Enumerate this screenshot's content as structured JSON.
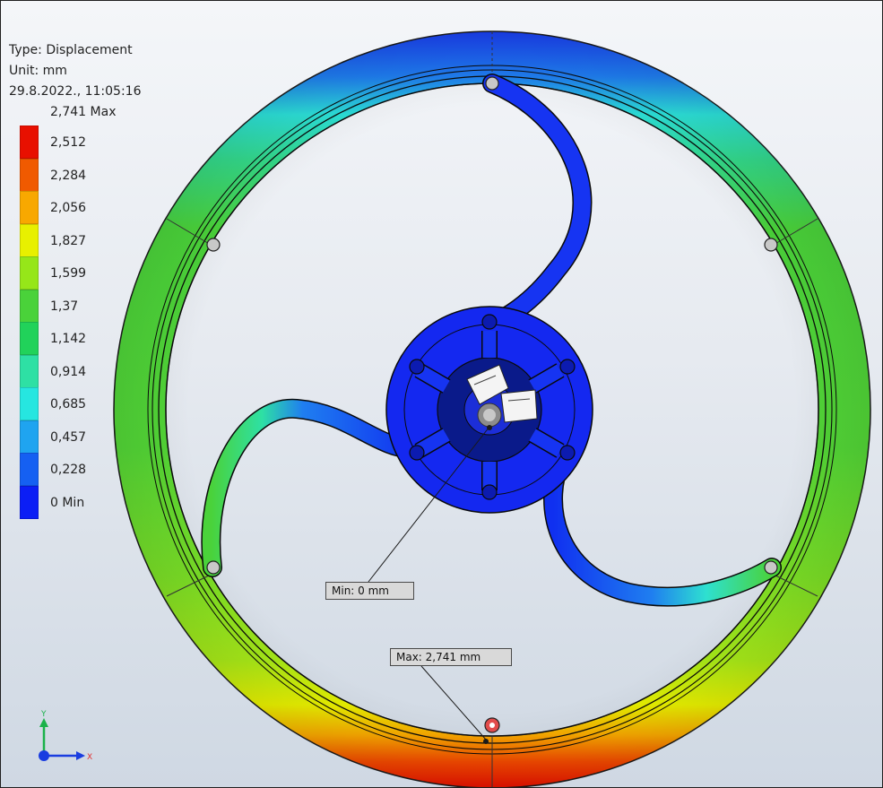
{
  "header": {
    "type_line": "Type: Displacement",
    "unit_line": "Unit: mm",
    "date_line": "29.8.2022., 11:05:16"
  },
  "legend": {
    "max_label": "2,741 Max",
    "levels": [
      {
        "label": "2,512",
        "color": "#e81000"
      },
      {
        "label": "2,284",
        "color": "#f05a00"
      },
      {
        "label": "2,056",
        "color": "#f8a800"
      },
      {
        "label": "1,827",
        "color": "#e8f000"
      },
      {
        "label": "1,599",
        "color": "#96e619"
      },
      {
        "label": "1,37",
        "color": "#4ad23a"
      },
      {
        "label": "1,142",
        "color": "#21d25a"
      },
      {
        "label": "0,914",
        "color": "#2ee0a4"
      },
      {
        "label": "0,685",
        "color": "#26e6e0"
      },
      {
        "label": "0,457",
        "color": "#1fa4f0"
      },
      {
        "label": "0,228",
        "color": "#1560f2"
      },
      {
        "label": "0 Min",
        "color": "#0b1ef5"
      }
    ]
  },
  "probes": {
    "min_label": "Min: 0 mm",
    "max_label": "Max: 2,741 mm"
  },
  "triad": {
    "y_label": "Y",
    "x_label": "X"
  }
}
